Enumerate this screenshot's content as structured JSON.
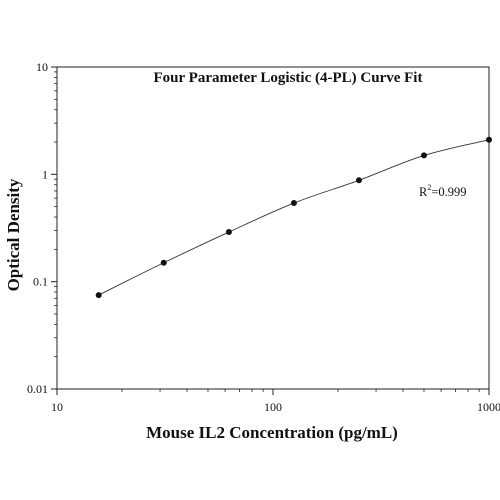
{
  "chart_data": {
    "type": "scatter",
    "title": "Four Parameter Logistic (4-PL) Curve Fit",
    "xlabel": "Mouse IL2 Concentration (pg/mL)",
    "ylabel": "Optical Density",
    "x_scale": "log",
    "y_scale": "log",
    "xlim": [
      10,
      1000
    ],
    "ylim": [
      0.01,
      10
    ],
    "x_ticks": [
      "10",
      "100",
      "1000"
    ],
    "y_ticks": [
      "0.01",
      "0.1",
      "1",
      "10"
    ],
    "grid": false,
    "legend": "none",
    "series": [
      {
        "kind": "points",
        "x": [
          15.6,
          31.2,
          62.5,
          125,
          250,
          500,
          1000
        ],
        "y": [
          0.075,
          0.15,
          0.29,
          0.54,
          0.88,
          1.5,
          2.1
        ]
      },
      {
        "kind": "fitted-curve",
        "x": [
          15.6,
          31.2,
          62.5,
          125,
          250,
          500,
          1000
        ],
        "y": [
          0.075,
          0.15,
          0.29,
          0.54,
          0.88,
          1.5,
          2.1
        ]
      }
    ],
    "annotation": {
      "base": "R",
      "superscript": "2",
      "text": "=0.999"
    },
    "colors": {
      "axis": "#222222",
      "marker": "#111111",
      "curve": "#333333"
    }
  }
}
